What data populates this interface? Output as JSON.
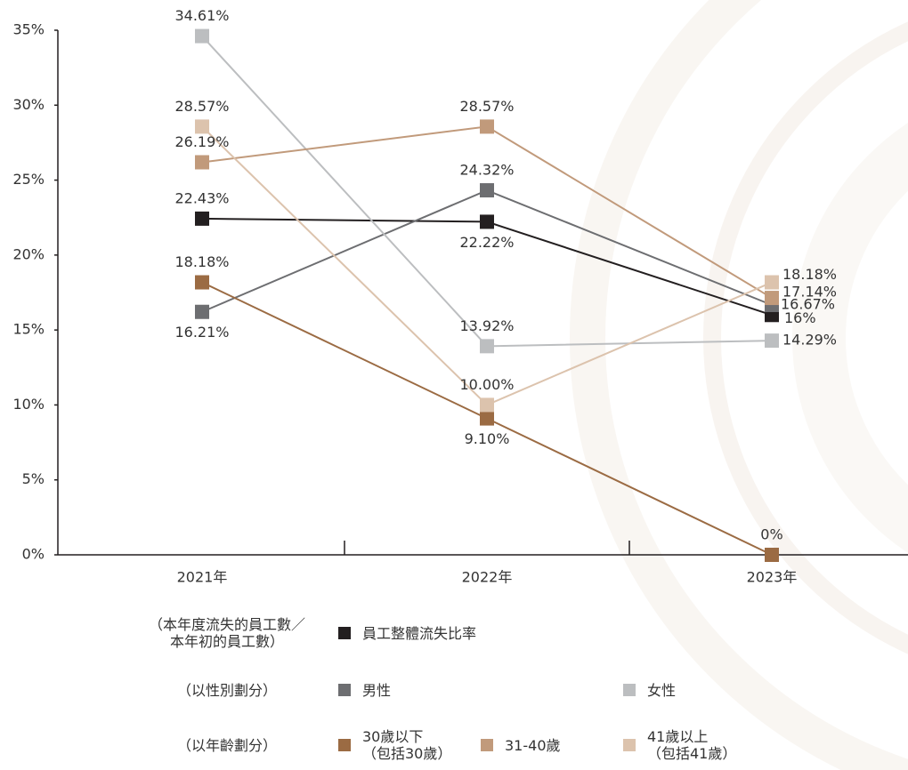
{
  "chart_data": {
    "type": "line",
    "categories": [
      "2021年",
      "2022年",
      "2023年"
    ],
    "ylim": [
      0,
      35
    ],
    "yticks": [
      {
        "value": 0,
        "label": "0%"
      },
      {
        "value": 5,
        "label": "5%"
      },
      {
        "value": 10,
        "label": "10%"
      },
      {
        "value": 15,
        "label": "15%"
      },
      {
        "value": 20,
        "label": "20%"
      },
      {
        "value": 25,
        "label": "25%"
      },
      {
        "value": 30,
        "label": "30%"
      },
      {
        "value": 35,
        "label": "35%"
      }
    ],
    "legend_group_labels": [
      "（本年度流失的員工數／\n本年初的員工數）",
      "（以性別劃分）",
      "（以年齡劃分）"
    ],
    "series": [
      {
        "name": "員工整體流失比率",
        "color": "#231f20",
        "values": [
          22.43,
          22.22,
          16
        ],
        "value_labels": [
          "22.43%",
          "22.22%",
          "16%"
        ]
      },
      {
        "name": "男性",
        "color": "#6d6e71",
        "values": [
          16.21,
          24.32,
          16.67
        ],
        "value_labels": [
          "16.21%",
          "24.32%",
          "16.67%"
        ]
      },
      {
        "name": "女性",
        "color": "#bcbec0",
        "values": [
          34.61,
          13.92,
          14.29
        ],
        "value_labels": [
          "34.61%",
          "13.92%",
          "14.29%"
        ]
      },
      {
        "name": "30歲以下\n（包括30歲）",
        "color": "#9b6b43",
        "values": [
          18.18,
          9.1,
          0
        ],
        "value_labels": [
          "18.18%",
          "9.10%",
          "0%"
        ]
      },
      {
        "name": "31-40歲",
        "color": "#c19a7b",
        "values": [
          26.19,
          28.57,
          17.14
        ],
        "value_labels": [
          "26.19%",
          "28.57%",
          "17.14%"
        ]
      },
      {
        "name": "41歲以上\n（包括41歲）",
        "color": "#dcc3ad",
        "values": [
          28.57,
          10.0,
          18.18
        ],
        "value_labels": [
          "28.57%",
          "10.00%",
          "18.18%"
        ]
      }
    ]
  }
}
